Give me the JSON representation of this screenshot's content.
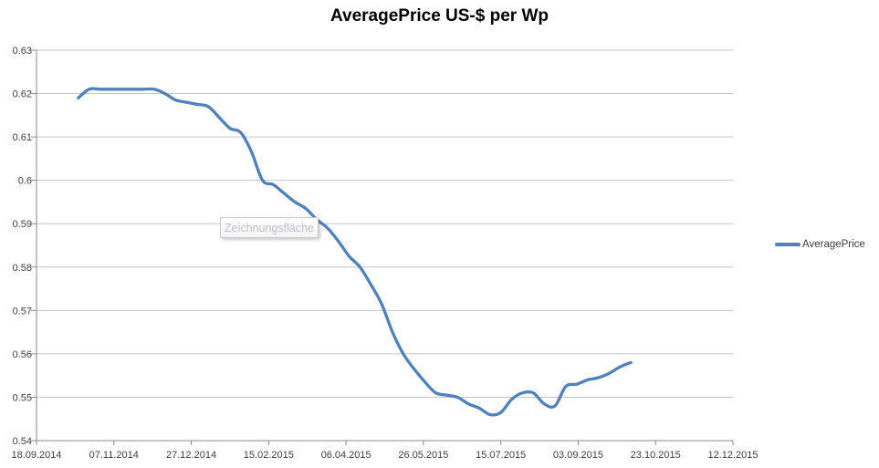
{
  "chart": {
    "title": "AveragePrice US-$ per Wp"
  },
  "tooltip": {
    "text": "Zeichnungsfläche"
  },
  "legend": {
    "label": "AveragePrice"
  },
  "colors": {
    "series": "#4f81bd",
    "gridline": "#c6c6c6",
    "axis": "#8c8c8c",
    "tick_label": "#3f3f3f"
  },
  "chart_data": {
    "type": "line",
    "title": "AveragePrice US-$ per Wp",
    "xlabel": "",
    "ylabel": "",
    "ylim": [
      0.54,
      0.63
    ],
    "y_tick_step": 0.01,
    "y_tick_labels": [
      "0.63",
      "0.62",
      "0.61",
      "0.6",
      "0.59",
      "0.58",
      "0.57",
      "0.56",
      "0.55",
      "0.54"
    ],
    "x_axis_start": "18.09.2014",
    "x_axis_end": "12.12.2015",
    "x_tick_labels": [
      "18.09.2014",
      "07.11.2014",
      "27.12.2014",
      "15.02.2015",
      "06.04.2015",
      "26.05.2015",
      "15.07.2015",
      "03.09.2015",
      "23.10.2015",
      "12.12.2015"
    ],
    "grid": "horizontal",
    "legend_position": "right",
    "series": [
      {
        "name": "AveragePrice",
        "color": "#4f81bd",
        "smooth": true,
        "dates": [
          "15.10.2014",
          "22.10.2014",
          "29.10.2014",
          "05.11.2014",
          "12.11.2014",
          "19.11.2014",
          "26.11.2014",
          "03.12.2014",
          "10.12.2014",
          "17.12.2014",
          "24.12.2014",
          "31.12.2014",
          "07.01.2015",
          "14.01.2015",
          "21.01.2015",
          "28.01.2015",
          "04.02.2015",
          "11.02.2015",
          "18.02.2015",
          "25.02.2015",
          "04.03.2015",
          "11.03.2015",
          "18.03.2015",
          "25.03.2015",
          "01.04.2015",
          "08.04.2015",
          "15.04.2015",
          "22.04.2015",
          "29.04.2015",
          "06.05.2015",
          "13.05.2015",
          "20.05.2015",
          "27.05.2015",
          "03.06.2015",
          "10.06.2015",
          "17.06.2015",
          "24.06.2015",
          "01.07.2015",
          "08.07.2015",
          "15.07.2015",
          "22.07.2015",
          "29.07.2015",
          "05.08.2015",
          "12.08.2015",
          "19.08.2015",
          "26.08.2015",
          "02.09.2015",
          "09.09.2015",
          "16.09.2015",
          "23.09.2015",
          "30.09.2015",
          "07.10.2015"
        ],
        "values": [
          0.619,
          0.621,
          0.621,
          0.621,
          0.621,
          0.621,
          0.621,
          0.621,
          0.62,
          0.6185,
          0.618,
          0.6175,
          0.617,
          0.6145,
          0.612,
          0.611,
          0.6065,
          0.6,
          0.599,
          0.597,
          0.595,
          0.5935,
          0.591,
          0.589,
          0.586,
          0.5825,
          0.58,
          0.576,
          0.5715,
          0.565,
          0.56,
          0.5565,
          0.5535,
          0.551,
          0.5505,
          0.55,
          0.5485,
          0.5475,
          0.546,
          0.5465,
          0.5495,
          0.551,
          0.551,
          0.5485,
          0.548,
          0.5525,
          0.553,
          0.554,
          0.5545,
          0.5555,
          0.557,
          0.558
        ]
      }
    ]
  }
}
